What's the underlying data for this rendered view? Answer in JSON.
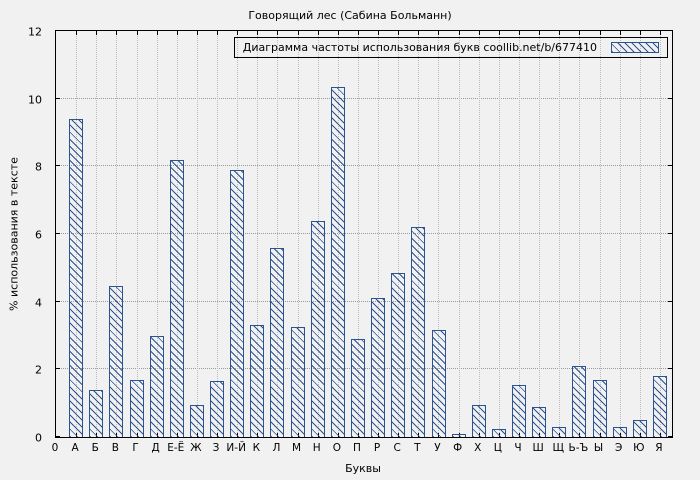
{
  "chart_data": {
    "type": "bar",
    "title": "Говорящий лес (Сабина Больманн)",
    "legend": "Диаграмма частоты использования букв coollib.net/b/677410",
    "xlabel": "Буквы",
    "ylabel": "% использования в тексте",
    "ylim": [
      0,
      12
    ],
    "yticks": [
      0,
      2,
      4,
      6,
      8,
      10,
      12
    ],
    "origin_label": "0",
    "grid": true,
    "legend_position": "top-right",
    "bar_color": "#2b5291",
    "background": "#f1f1f1",
    "categories": [
      "А",
      "Б",
      "В",
      "Г",
      "Д",
      "Е-Ё",
      "Ж",
      "З",
      "И-Й",
      "К",
      "Л",
      "М",
      "Н",
      "О",
      "П",
      "Р",
      "С",
      "Т",
      "У",
      "Ф",
      "Х",
      "Ц",
      "Ч",
      "Ш",
      "Щ",
      "Ь-Ъ",
      "Ы",
      "Э",
      "Ю",
      "Я"
    ],
    "values": [
      9.4,
      1.4,
      4.45,
      1.7,
      3.0,
      8.2,
      0.95,
      1.65,
      7.9,
      3.3,
      5.6,
      3.25,
      6.4,
      10.35,
      2.9,
      4.1,
      4.85,
      6.2,
      3.15,
      0.1,
      0.95,
      0.25,
      1.55,
      0.9,
      0.3,
      2.1,
      1.7,
      0.3,
      0.5,
      1.8
    ]
  }
}
